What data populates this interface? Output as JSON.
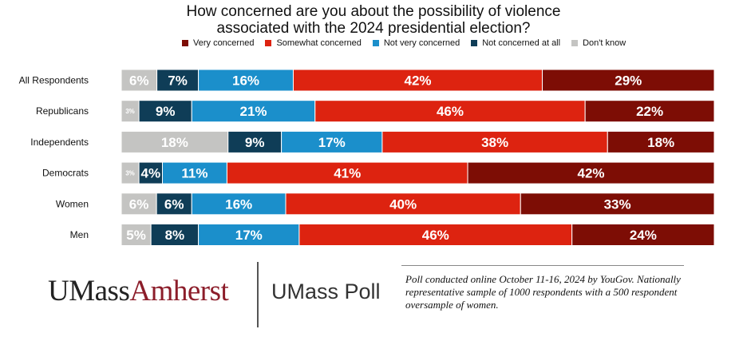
{
  "chart_data": {
    "type": "bar",
    "orientation": "horizontal",
    "stacked": true,
    "title_line1": "How concerned are you about the possibility of violence",
    "title_line2": "associated with the 2024 presidential election?",
    "categories": [
      "All Respondents",
      "Republicans",
      "Independents",
      "Democrats",
      "Women",
      "Men"
    ],
    "series": [
      {
        "name": "Don't know",
        "color": "#c4c4c2",
        "values": [
          6,
          3,
          18,
          3,
          6,
          5
        ]
      },
      {
        "name": "Not concerned at all",
        "color": "#0f3d57",
        "values": [
          7,
          9,
          9,
          4,
          6,
          8
        ]
      },
      {
        "name": "Not very concerned",
        "color": "#1b8fcb",
        "values": [
          16,
          21,
          17,
          11,
          16,
          17
        ]
      },
      {
        "name": "Somewhat concerned",
        "color": "#dd2310",
        "values": [
          42,
          46,
          38,
          41,
          40,
          46
        ]
      },
      {
        "name": "Very concerned",
        "color": "#7d0d05",
        "values": [
          29,
          22,
          18,
          42,
          33,
          24
        ]
      }
    ],
    "legend": [
      "Very concerned",
      "Somewhat concerned",
      "Not very concerned",
      "Not concerned at all",
      "Don't know"
    ],
    "legend_position": "top",
    "value_suffix": "%",
    "xlim": [
      0,
      100
    ]
  },
  "footer": {
    "logo_part1": "UMass",
    "logo_part2": "Amherst",
    "poll_name": "UMass Poll",
    "note": "Poll conducted online October 11-16, 2024 by YouGov. Nationally representative sample of 1000 respondents with a 500 respondent oversample of women."
  }
}
